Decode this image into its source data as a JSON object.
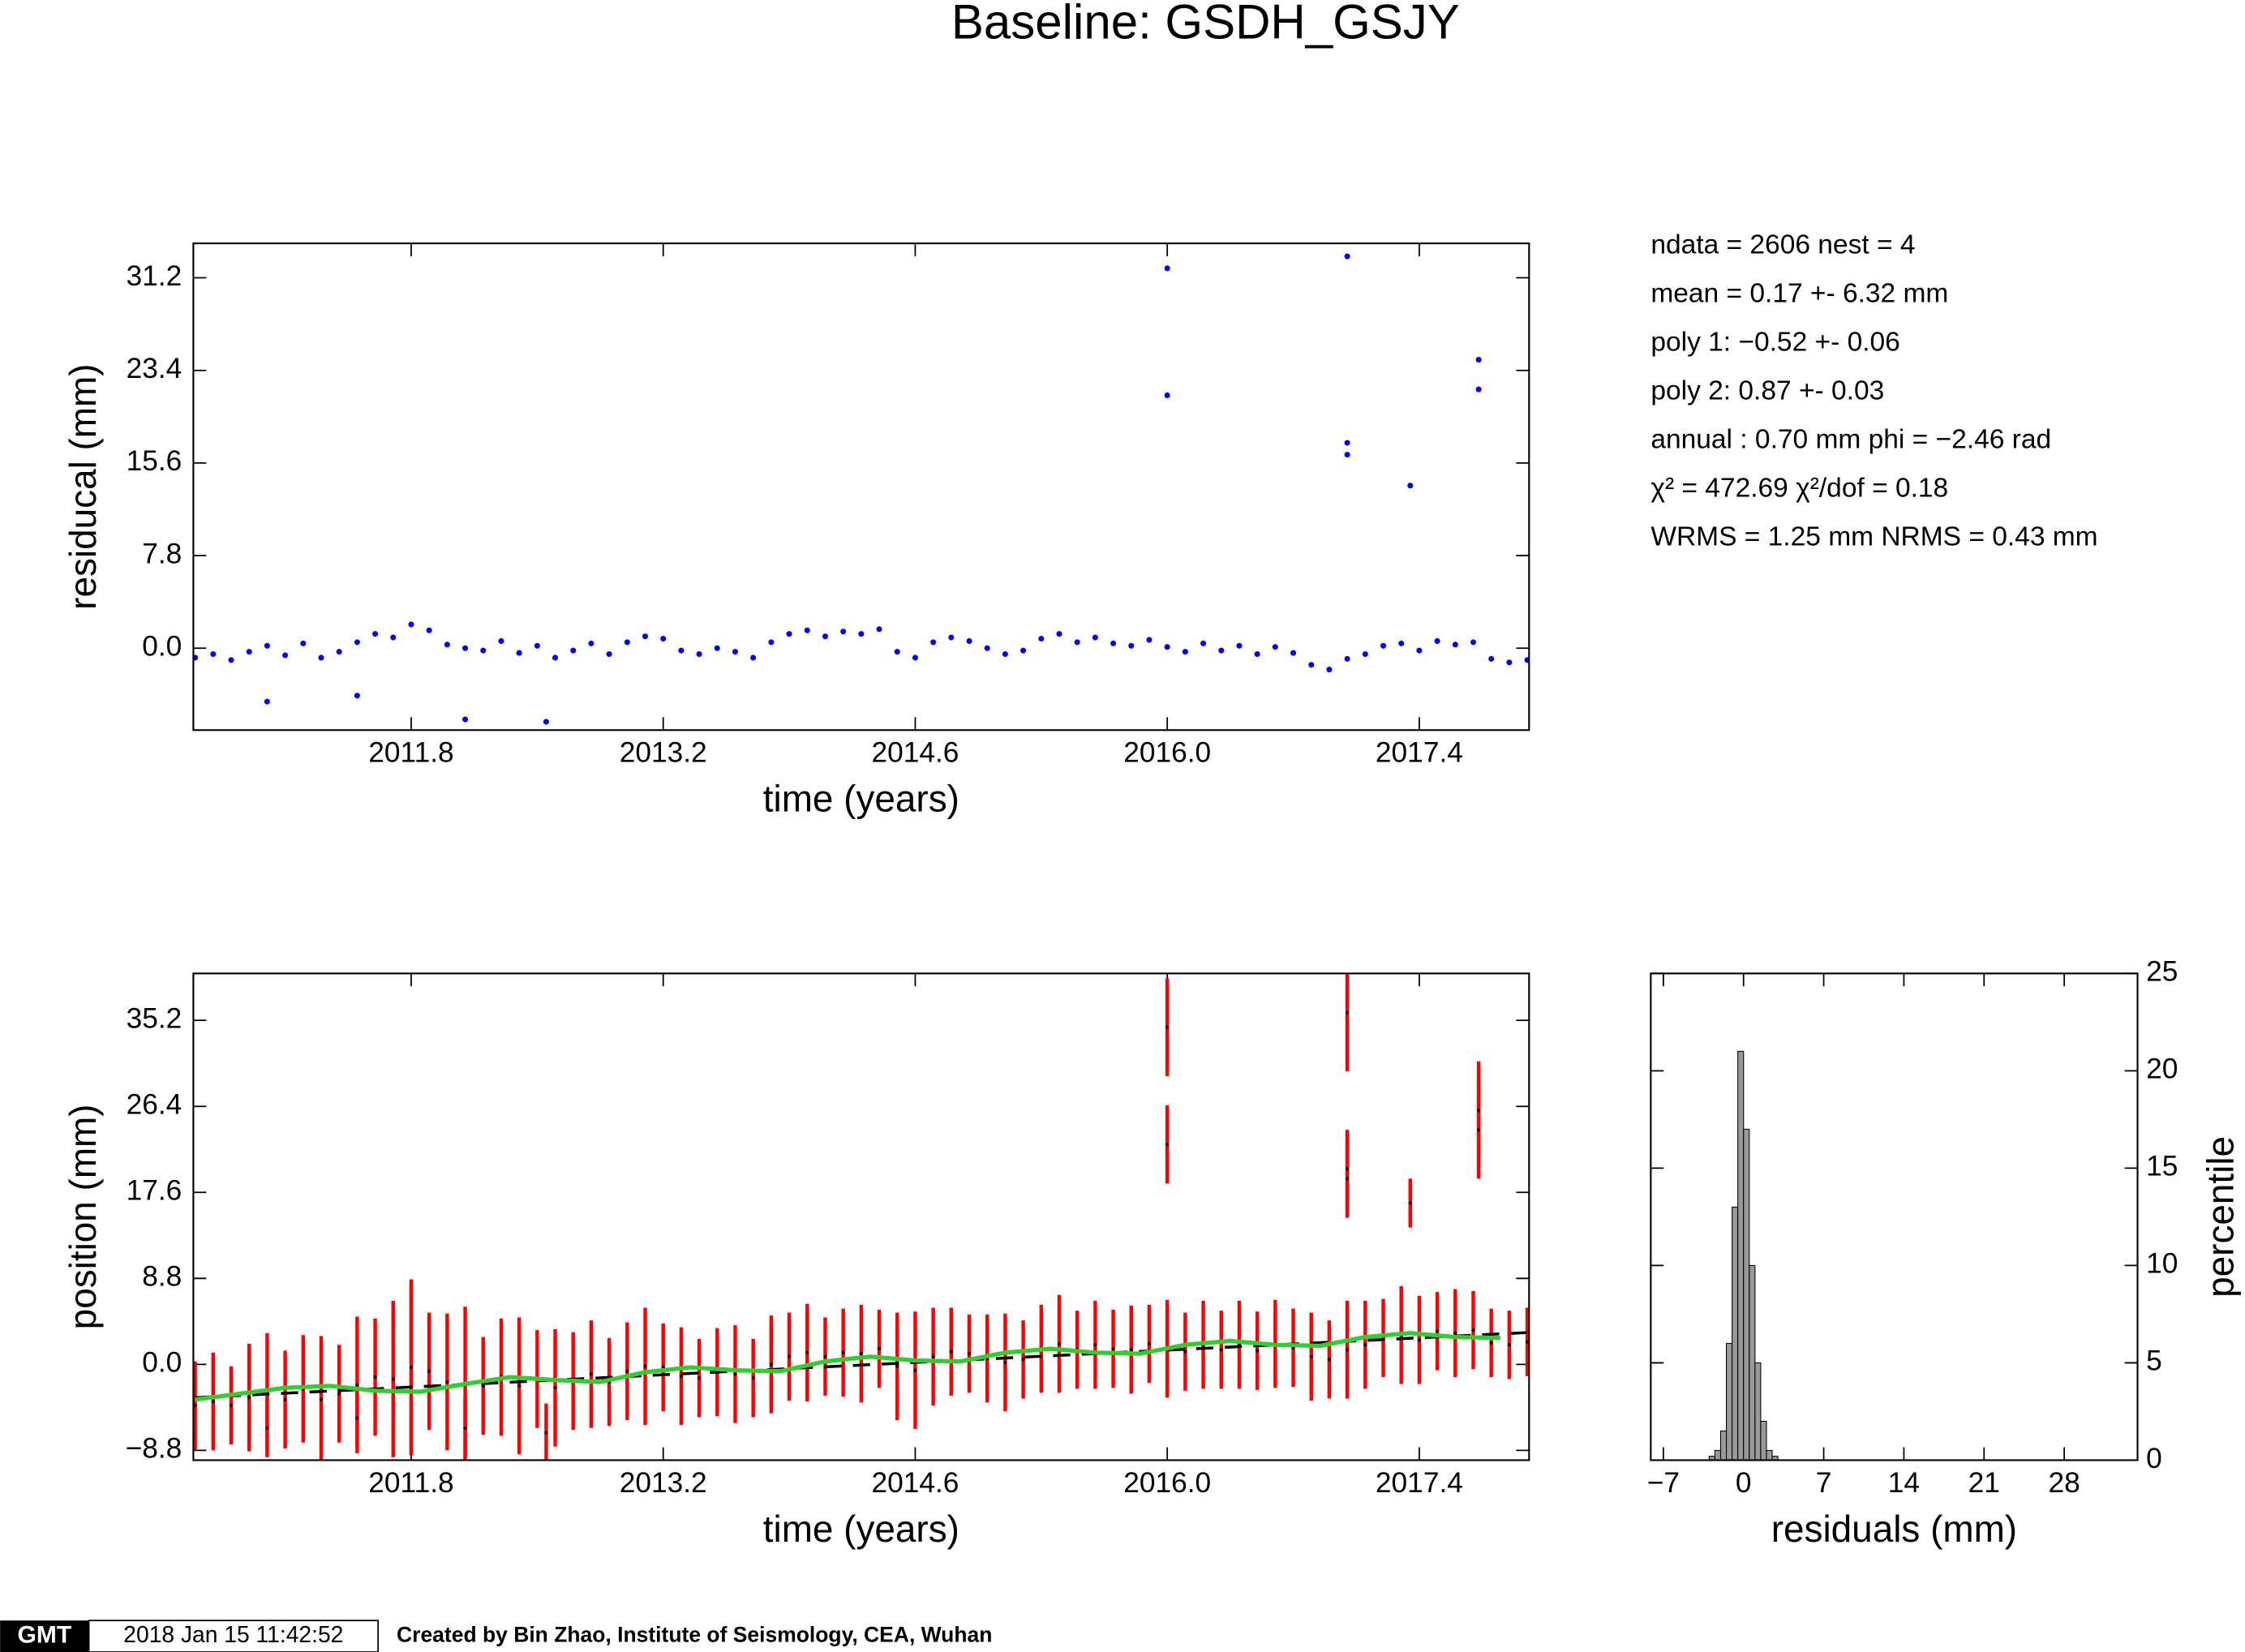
{
  "title": "Baseline: GSDH_GSJY",
  "stats": [
    "ndata = 2606  nest = 4",
    "mean = 0.17 +- 6.32 mm",
    "poly 1: −0.52 +- 0.06",
    "poly 2: 0.87 +- 0.03",
    "annual : 0.70 mm  phi = −2.46 rad",
    "χ² = 472.69  χ²/dof = 0.18",
    "WRMS = 1.25 mm  NRMS = 0.43 mm"
  ],
  "footer": {
    "logo": "GMT",
    "timestamp": "2018 Jan 15 11:42:52",
    "credit": "Created by Bin Zhao, Institute of Seismology, CEA, Wuhan"
  },
  "chart_data": [
    {
      "type": "scatter",
      "xlabel": "time (years)",
      "ylabel": "residucal (mm)",
      "xlim": [
        2010.59,
        2018.01
      ],
      "ylim": [
        -6.9,
        34.1
      ],
      "xticks": [
        2011.8,
        2013.2,
        2014.6,
        {
          "value": 2016,
          "label": "2016.0"
        },
        2017.4
      ],
      "yticks": [
        {
          "value": 0,
          "label": "0.0"
        },
        7.8,
        15.6,
        23.4,
        31.2
      ],
      "series": [
        {
          "color": "#0000ff",
          "x": [
            2010.6,
            2010.7,
            2010.8,
            2010.9,
            2011.0,
            2011.1,
            2011.2,
            2011.3,
            2011.4,
            2011.5,
            2011.6,
            2011.7,
            2011.8,
            2011.9,
            2012.0,
            2012.1,
            2012.2,
            2012.3,
            2012.4,
            2012.5,
            2012.6,
            2012.7,
            2012.8,
            2012.9,
            2013.0,
            2013.1,
            2013.2,
            2013.3,
            2013.4,
            2013.5,
            2013.6,
            2013.7,
            2013.8,
            2013.9,
            2014.0,
            2014.1,
            2014.2,
            2014.3,
            2014.4,
            2014.5,
            2014.6,
            2014.7,
            2014.8,
            2014.9,
            2015.0,
            2015.1,
            2015.2,
            2015.3,
            2015.4,
            2015.5,
            2015.6,
            2015.7,
            2015.8,
            2015.9,
            2016.0,
            2016.1,
            2016.2,
            2016.3,
            2016.4,
            2016.5,
            2016.6,
            2016.7,
            2016.8,
            2016.9,
            2017.0,
            2017.1,
            2017.2,
            2017.3,
            2017.4,
            2017.5,
            2017.6,
            2017.7,
            2017.8,
            2017.9,
            2018.0,
            2016.0,
            2016.0,
            2017.0,
            2017.0,
            2017.0,
            2017.35,
            2017.73,
            2017.73,
            2012.1,
            2012.55,
            2011.0,
            2011.5
          ],
          "values": [
            -0.8,
            -0.5,
            -1.0,
            -0.3,
            0.2,
            -0.6,
            0.4,
            -0.8,
            -0.3,
            0.5,
            1.2,
            0.9,
            2.0,
            1.5,
            0.3,
            0.0,
            -0.2,
            0.6,
            -0.4,
            0.2,
            -0.8,
            -0.2,
            0.4,
            -0.5,
            0.5,
            1.0,
            0.8,
            -0.2,
            -0.5,
            0.0,
            -0.3,
            -0.8,
            0.5,
            1.2,
            1.5,
            1.0,
            1.4,
            1.2,
            1.6,
            -0.3,
            -0.8,
            0.5,
            0.9,
            0.6,
            0.0,
            -0.5,
            -0.2,
            0.8,
            1.2,
            0.5,
            0.9,
            0.4,
            0.2,
            0.7,
            0.1,
            -0.3,
            0.4,
            -0.2,
            0.2,
            -0.5,
            0.1,
            -0.4,
            -1.4,
            -1.8,
            -0.9,
            -0.5,
            0.2,
            0.4,
            -0.2,
            0.6,
            0.3,
            0.5,
            -0.9,
            -1.2,
            -1.0,
            32.0,
            21.3,
            33.0,
            17.3,
            16.3,
            13.7,
            24.3,
            21.8,
            -6.0,
            -6.2,
            -4.5,
            -4.0
          ]
        }
      ]
    },
    {
      "type": "errorbar",
      "xlabel": "time (years)",
      "ylabel": "position (mm)",
      "xlim": [
        2010.59,
        2018.01
      ],
      "ylim": [
        -9.8,
        40.0
      ],
      "xticks": [
        2011.8,
        2013.2,
        2014.6,
        {
          "value": 2016,
          "label": "2016.0"
        },
        2017.4
      ],
      "yticks": [
        {
          "value": -8.8,
          "label": "−8.8"
        },
        {
          "value": 0,
          "label": "0.0"
        },
        8.8,
        17.6,
        26.4,
        35.2
      ],
      "series": [
        {
          "type": "errorbar",
          "color": "#ff0000",
          "point_color": "#000000",
          "x": [
            2010.6,
            2010.7,
            2010.8,
            2010.9,
            2011.0,
            2011.1,
            2011.2,
            2011.3,
            2011.4,
            2011.5,
            2011.6,
            2011.7,
            2011.8,
            2011.9,
            2012.0,
            2012.1,
            2012.2,
            2012.3,
            2012.4,
            2012.5,
            2012.6,
            2012.7,
            2012.8,
            2012.9,
            2013.0,
            2013.1,
            2013.2,
            2013.3,
            2013.4,
            2013.5,
            2013.6,
            2013.7,
            2013.8,
            2013.9,
            2014.0,
            2014.1,
            2014.2,
            2014.3,
            2014.4,
            2014.5,
            2014.6,
            2014.7,
            2014.8,
            2014.9,
            2015.0,
            2015.1,
            2015.2,
            2015.3,
            2015.4,
            2015.5,
            2015.6,
            2015.7,
            2015.8,
            2015.9,
            2016.0,
            2016.1,
            2016.2,
            2016.3,
            2016.4,
            2016.5,
            2016.6,
            2016.7,
            2016.8,
            2016.9,
            2017.0,
            2017.1,
            2017.2,
            2017.3,
            2017.4,
            2017.5,
            2017.6,
            2017.7,
            2017.8,
            2017.9,
            2018.0,
            2016.0,
            2016.0,
            2017.0,
            2017.0,
            2017.0,
            2017.35,
            2017.73,
            2017.73,
            2012.1,
            2012.55,
            2011.0,
            2011.5
          ],
          "values": [
            -4.2,
            -3.8,
            -4.2,
            -3.4,
            -2.8,
            -3.6,
            -2.5,
            -3.6,
            -3.0,
            -2.1,
            -1.3,
            -1.5,
            -0.3,
            -0.7,
            -1.8,
            -2.1,
            -2.2,
            -1.3,
            -2.2,
            -1.5,
            -2.4,
            -1.7,
            -1.0,
            -1.8,
            -0.7,
            -0.2,
            -0.3,
            -1.2,
            -1.4,
            -0.8,
            -1.0,
            -1.4,
            0.0,
            0.8,
            1.2,
            0.8,
            1.2,
            1.1,
            1.6,
            -0.2,
            -0.6,
            0.8,
            1.3,
            1.1,
            0.6,
            0.2,
            0.5,
            1.6,
            2.1,
            1.5,
            2.0,
            1.6,
            1.5,
            2.1,
            1.6,
            1.3,
            2.0,
            1.5,
            2.0,
            1.4,
            2.1,
            1.7,
            0.8,
            0.5,
            1.5,
            2.0,
            2.7,
            3.0,
            2.5,
            3.4,
            3.2,
            3.5,
            2.2,
            2.0,
            2.3,
            34.5,
            22.5,
            36.0,
            20.0,
            19.0,
            16.5,
            26.0,
            24.0,
            -6.5,
            -7.0,
            -6.5,
            -5.5
          ],
          "errors": [
            4.5,
            5,
            4,
            5.5,
            6,
            5,
            5.5,
            6.5,
            5,
            7,
            6,
            8,
            9,
            6,
            7,
            8,
            5,
            6,
            7,
            5,
            6,
            5,
            5.5,
            4.5,
            5,
            6,
            4.5,
            5,
            4,
            4.5,
            5,
            4,
            5,
            4.5,
            5,
            4,
            4.5,
            5,
            4,
            5.5,
            6,
            5,
            4.5,
            4,
            4.5,
            5,
            4,
            4.5,
            5,
            4,
            4.5,
            4,
            4.5,
            4,
            5,
            4,
            4.5,
            4,
            4.5,
            4,
            4.5,
            4,
            4.5,
            4,
            5,
            4.5,
            4,
            5,
            4.5,
            4,
            4.5,
            4,
            3.5,
            3.5,
            3.5,
            5,
            4,
            6,
            4,
            4,
            2.5,
            5,
            5,
            3,
            3,
            3,
            3
          ]
        },
        {
          "type": "line",
          "color": "#000000",
          "dash": true,
          "x": [
            2010.6,
            2018.0
          ],
          "values": [
            -3.4,
            3.26
          ]
        },
        {
          "type": "line",
          "color": "#33cc33",
          "x": [
            2010.6,
            2010.85,
            2011.1,
            2011.35,
            2011.6,
            2011.85,
            2012.1,
            2012.35,
            2012.6,
            2012.85,
            2013.1,
            2013.35,
            2013.6,
            2013.85,
            2014.1,
            2014.35,
            2014.6,
            2014.85,
            2015.1,
            2015.35,
            2015.6,
            2015.85,
            2016.1,
            2016.35,
            2016.6,
            2016.85,
            2017.1,
            2017.35,
            2017.6,
            2017.85
          ],
          "values": [
            -3.6,
            -3.0,
            -2.4,
            -2.2,
            -2.7,
            -2.8,
            -2.0,
            -1.3,
            -1.6,
            -1.8,
            -0.8,
            -0.3,
            -0.6,
            -0.7,
            0.3,
            0.8,
            0.4,
            0.3,
            1.2,
            1.6,
            1.2,
            1.1,
            2.0,
            2.4,
            2.0,
            1.9,
            2.8,
            3.2,
            2.8,
            2.7
          ]
        }
      ]
    },
    {
      "type": "histogram",
      "xlabel": "residuals (mm)",
      "ylabel": "percentile",
      "y_axis_side": "right",
      "color": "#999999",
      "xlim": [
        -8.1,
        34.4
      ],
      "ylim": [
        0,
        25
      ],
      "xticks": [
        {
          "value": -7,
          "label": "−7"
        },
        0,
        7,
        14,
        21,
        28
      ],
      "yticks": [
        0,
        5,
        10,
        15,
        20,
        25
      ],
      "bins": [
        -3,
        -2.5,
        -2,
        -1.5,
        -1,
        -0.5,
        0,
        0.5,
        1,
        1.5,
        2,
        2.5,
        3
      ],
      "counts": [
        0.2,
        0.5,
        1.5,
        6,
        13,
        21,
        17,
        10,
        5,
        2,
        0.5,
        0.2
      ]
    }
  ]
}
